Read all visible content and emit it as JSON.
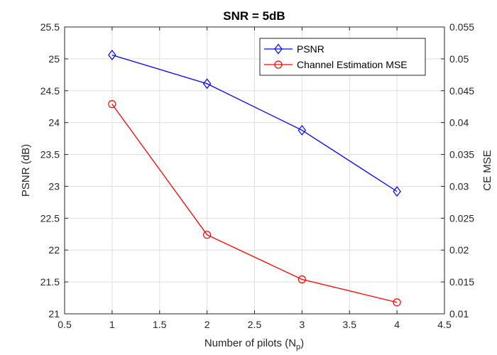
{
  "chart_data": {
    "type": "line",
    "title": "SNR = 5dB",
    "xlabel": "Number of pilots (N",
    "xlabel_subscript": "p",
    "xlabel_suffix": ")",
    "ylabel_left": "PSNR (dB)",
    "ylabel_right": "CE MSE",
    "xlim": [
      0.5,
      4.5
    ],
    "ylim_left": [
      21,
      25.5
    ],
    "ylim_right": [
      0.01,
      0.055
    ],
    "xticks": [
      "0.5",
      "1",
      "1.5",
      "2",
      "2.5",
      "3",
      "3.5",
      "4",
      "4.5"
    ],
    "yticks_left": [
      "21",
      "21.5",
      "22",
      "22.5",
      "23",
      "23.5",
      "24",
      "24.5",
      "25",
      "25.5"
    ],
    "yticks_right": [
      "0.01",
      "0.015",
      "0.02",
      "0.025",
      "0.03",
      "0.035",
      "0.04",
      "0.045",
      "0.05",
      "0.055"
    ],
    "grid": true,
    "legend_position": "top-right",
    "series": [
      {
        "name": "PSNR",
        "axis": "left",
        "color": "#0000ff",
        "marker": "diamond",
        "x": [
          1,
          2,
          3,
          4
        ],
        "values": [
          25.06,
          24.61,
          23.88,
          22.92
        ]
      },
      {
        "name": "Channel Estimation MSE",
        "axis": "right",
        "color": "#ff0000",
        "marker": "circle",
        "x": [
          1,
          2,
          3,
          4
        ],
        "values": [
          0.0429,
          0.0224,
          0.0154,
          0.0118
        ]
      }
    ]
  }
}
